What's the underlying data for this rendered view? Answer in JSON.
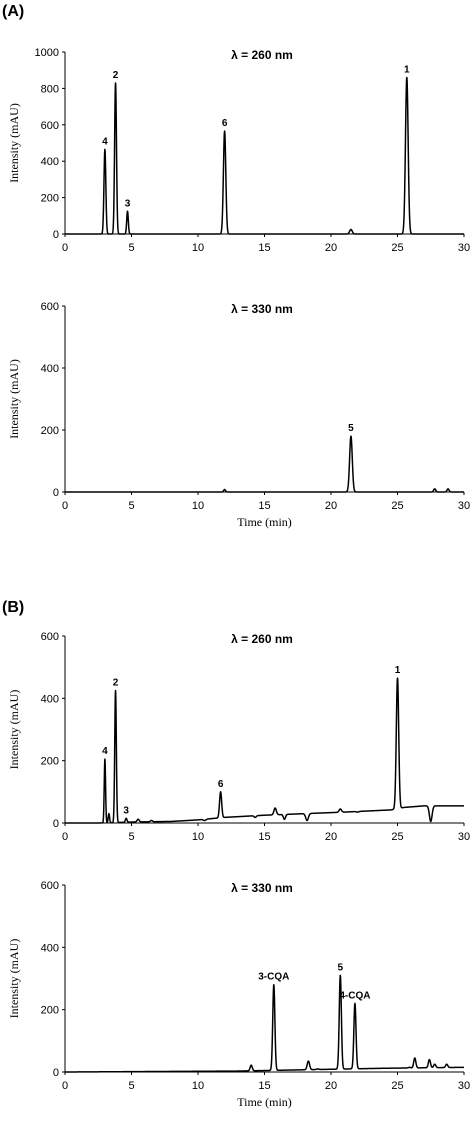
{
  "panels": [
    {
      "label": "(A)"
    },
    {
      "label": "(B)"
    }
  ],
  "chart_data": [
    {
      "type": "line",
      "panel": "(A)",
      "title": "λ = 260 nm",
      "xlabel": "",
      "ylabel": "Intensity (mAU)",
      "xlim": [
        0,
        30
      ],
      "ylim": [
        0,
        1000
      ],
      "xticks": [
        0,
        5,
        10,
        15,
        20,
        25,
        30
      ],
      "yticks": [
        0,
        200,
        400,
        600,
        800,
        1000
      ],
      "baseline": [
        [
          0,
          0
        ],
        [
          30,
          0
        ]
      ],
      "peaks": [
        {
          "x": 3.0,
          "y": 465,
          "w": 0.07,
          "label": "4"
        },
        {
          "x": 3.8,
          "y": 830,
          "w": 0.07,
          "label": "2"
        },
        {
          "x": 4.7,
          "y": 125,
          "w": 0.06,
          "label": "3"
        },
        {
          "x": 12.0,
          "y": 565,
          "w": 0.09,
          "label": "6"
        },
        {
          "x": 21.5,
          "y": 25,
          "w": 0.1,
          "label": ""
        },
        {
          "x": 25.7,
          "y": 860,
          "w": 0.1,
          "label": "1"
        }
      ],
      "grid": false,
      "legend": "none"
    },
    {
      "type": "line",
      "panel": "(A)",
      "title": "λ = 330 nm",
      "xlabel": "Time (min)",
      "ylabel": "Intensity (mAU)",
      "xlim": [
        0,
        30
      ],
      "ylim": [
        0,
        600
      ],
      "xticks": [
        0,
        5,
        10,
        15,
        20,
        25,
        30
      ],
      "yticks": [
        0,
        200,
        400,
        600
      ],
      "baseline": [
        [
          0,
          0
        ],
        [
          30,
          0
        ]
      ],
      "peaks": [
        {
          "x": 12.0,
          "y": 8,
          "w": 0.07,
          "label": ""
        },
        {
          "x": 21.5,
          "y": 180,
          "w": 0.1,
          "label": "5"
        },
        {
          "x": 27.8,
          "y": 10,
          "w": 0.08,
          "label": ""
        },
        {
          "x": 28.8,
          "y": 10,
          "w": 0.08,
          "label": ""
        }
      ],
      "grid": false,
      "legend": "none"
    },
    {
      "type": "line",
      "panel": "(B)",
      "title": "λ = 260 nm",
      "xlabel": "",
      "ylabel": "Intensity (mAU)",
      "xlim": [
        0,
        30
      ],
      "ylim": [
        0,
        600
      ],
      "xticks": [
        0,
        5,
        10,
        15,
        20,
        25,
        30
      ],
      "yticks": [
        0,
        200,
        400,
        600
      ],
      "baseline": [
        [
          0,
          0
        ],
        [
          2.5,
          0
        ],
        [
          5,
          3
        ],
        [
          8,
          5
        ],
        [
          10,
          10
        ],
        [
          12,
          18
        ],
        [
          15,
          25
        ],
        [
          18,
          30
        ],
        [
          21,
          35
        ],
        [
          24.5,
          42
        ],
        [
          25.5,
          50
        ],
        [
          27,
          55
        ],
        [
          30,
          55
        ]
      ],
      "peaks": [
        {
          "x": 3.0,
          "y": 205,
          "w": 0.05,
          "label": "4"
        },
        {
          "x": 3.3,
          "y": 30,
          "w": 0.05,
          "label": ""
        },
        {
          "x": 3.8,
          "y": 425,
          "w": 0.06,
          "label": "2"
        },
        {
          "x": 4.6,
          "y": 15,
          "w": 0.06,
          "label": "3"
        },
        {
          "x": 5.5,
          "y": 12,
          "w": 0.08,
          "label": ""
        },
        {
          "x": 6.5,
          "y": 8,
          "w": 0.08,
          "label": ""
        },
        {
          "x": 10.5,
          "y": 8,
          "w": 0.1,
          "label": ""
        },
        {
          "x": 11.7,
          "y": 100,
          "w": 0.08,
          "label": "6"
        },
        {
          "x": 14.3,
          "y": 18,
          "w": 0.08,
          "label": ""
        },
        {
          "x": 15.8,
          "y": 48,
          "w": 0.09,
          "label": ""
        },
        {
          "x": 16.5,
          "y": 12,
          "w": 0.08,
          "label": ""
        },
        {
          "x": 18.2,
          "y": 8,
          "w": 0.1,
          "label": ""
        },
        {
          "x": 20.7,
          "y": 45,
          "w": 0.09,
          "label": ""
        },
        {
          "x": 22.0,
          "y": 35,
          "w": 0.09,
          "label": ""
        },
        {
          "x": 25.0,
          "y": 465,
          "w": 0.09,
          "label": "1"
        },
        {
          "x": 27.5,
          "y": 5,
          "w": 0.1,
          "label": ""
        }
      ],
      "grid": false,
      "legend": "none"
    },
    {
      "type": "line",
      "panel": "(B)",
      "title": "λ = 330 nm",
      "xlabel": "Time (min)",
      "ylabel": "Intensity (mAU)",
      "xlim": [
        0,
        30
      ],
      "ylim": [
        0,
        600
      ],
      "xticks": [
        0,
        5,
        10,
        15,
        20,
        25,
        30
      ],
      "yticks": [
        0,
        200,
        400,
        600
      ],
      "baseline": [
        [
          0,
          0
        ],
        [
          13,
          3
        ],
        [
          19,
          8
        ],
        [
          24,
          12
        ],
        [
          30,
          15
        ]
      ],
      "peaks": [
        {
          "x": 14.0,
          "y": 22,
          "w": 0.08,
          "label": ""
        },
        {
          "x": 15.7,
          "y": 280,
          "w": 0.08,
          "label": "3-CQA"
        },
        {
          "x": 18.3,
          "y": 35,
          "w": 0.09,
          "label": ""
        },
        {
          "x": 19.0,
          "y": 10,
          "w": 0.08,
          "label": ""
        },
        {
          "x": 20.7,
          "y": 310,
          "w": 0.08,
          "label": "5"
        },
        {
          "x": 21.8,
          "y": 220,
          "w": 0.08,
          "label": "4-CQA"
        },
        {
          "x": 25.9,
          "y": 15,
          "w": 0.08,
          "label": ""
        },
        {
          "x": 26.3,
          "y": 45,
          "w": 0.08,
          "label": ""
        },
        {
          "x": 27.4,
          "y": 40,
          "w": 0.08,
          "label": ""
        },
        {
          "x": 27.8,
          "y": 25,
          "w": 0.08,
          "label": ""
        },
        {
          "x": 28.7,
          "y": 25,
          "w": 0.08,
          "label": ""
        }
      ],
      "grid": false,
      "legend": "none"
    }
  ]
}
